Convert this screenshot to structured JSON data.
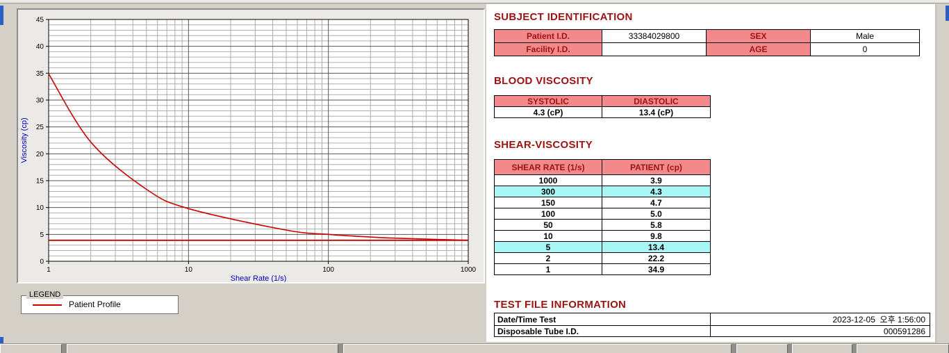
{
  "colors": {
    "accent_red": "#9b1313",
    "header_pink": "#f4898c",
    "row_highlight": "#a8f6f6",
    "series_red": "#cc0000",
    "axis_blue": "#0000c0",
    "window_gray": "#d4d0c8",
    "fragment_blue": "#2a5fc7"
  },
  "sections": {
    "subject_identification": "SUBJECT IDENTIFICATION",
    "blood_viscosity": "BLOOD VISCOSITY",
    "shear_viscosity": "SHEAR-VISCOSITY",
    "test_file_information": "TEST FILE INFORMATION"
  },
  "subject_table": {
    "rows": [
      {
        "label1": "Patient I.D.",
        "value1": "33384029800",
        "label2": "SEX",
        "value2": "Male"
      },
      {
        "label1": "Facility I.D.",
        "value1": "",
        "label2": "AGE",
        "value2": "0"
      }
    ]
  },
  "blood_viscosity": {
    "headers": [
      "SYSTOLIC",
      "DIASTOLIC"
    ],
    "values": [
      "4.3 (cP)",
      "13.4 (cP)"
    ]
  },
  "shear_viscosity": {
    "headers": [
      "SHEAR RATE (1/s)",
      "PATIENT (cp)"
    ],
    "rows": [
      {
        "rate": "1000",
        "patient": "3.9",
        "highlight": false
      },
      {
        "rate": "300",
        "patient": "4.3",
        "highlight": true
      },
      {
        "rate": "150",
        "patient": "4.7",
        "highlight": false
      },
      {
        "rate": "100",
        "patient": "5.0",
        "highlight": false
      },
      {
        "rate": "50",
        "patient": "5.8",
        "highlight": false
      },
      {
        "rate": "10",
        "patient": "9.8",
        "highlight": false
      },
      {
        "rate": "5",
        "patient": "13.4",
        "highlight": true
      },
      {
        "rate": "2",
        "patient": "22.2",
        "highlight": false
      },
      {
        "rate": "1",
        "patient": "34.9",
        "highlight": false
      }
    ]
  },
  "test_file": {
    "rows": [
      {
        "label": "Date/Time Test",
        "value": "2023-12-05  오후 1:56:00"
      },
      {
        "label": "Disposable Tube I.D.",
        "value": "000591286"
      }
    ]
  },
  "legend": {
    "group_label": "LEGEND",
    "series_label": "Patient Profile"
  },
  "chart_data": {
    "type": "line",
    "title": "",
    "xlabel": "Shear Rate (1/s)",
    "ylabel": "Viscosity (cp)",
    "x_scale": "log",
    "xlim": [
      1,
      1000
    ],
    "ylim": [
      0,
      45
    ],
    "x_ticks": [
      1,
      10,
      100,
      1000
    ],
    "y_ticks": [
      0,
      5,
      10,
      15,
      20,
      25,
      30,
      35,
      40,
      45
    ],
    "y_major_step": 5,
    "y_minor_step": 1,
    "grid": true,
    "x": [
      1,
      2,
      5,
      10,
      50,
      100,
      150,
      300,
      1000
    ],
    "series": [
      {
        "name": "Patient Profile",
        "color": "#cc0000",
        "values": [
          34.9,
          22.2,
          13.4,
          9.8,
          5.8,
          5.0,
          4.7,
          4.3,
          3.9
        ]
      }
    ],
    "baseline": 3.9,
    "legend_position": "below-left"
  }
}
